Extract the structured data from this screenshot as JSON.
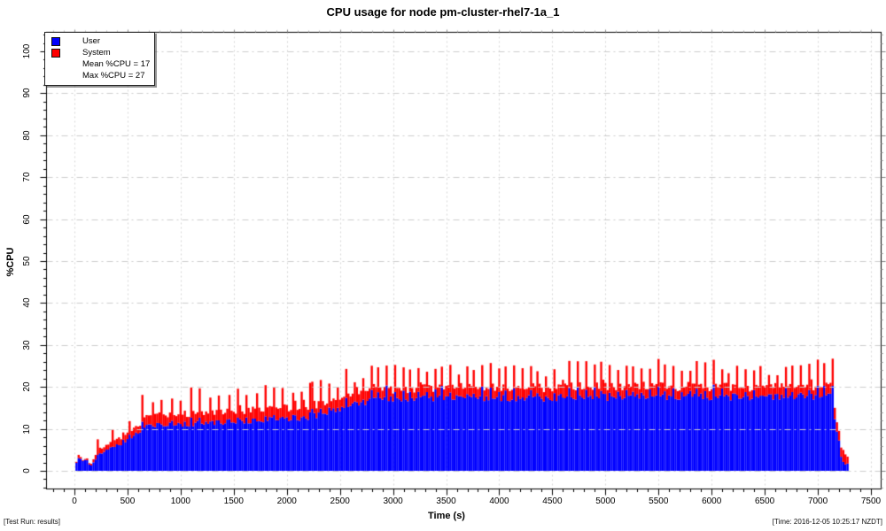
{
  "chart_data": {
    "type": "area",
    "stacked": true,
    "title": "CPU usage for node pm-cluster-rhel7-1a_1",
    "xlabel": "Time (s)",
    "ylabel": "%CPU",
    "xlim": [
      0,
      7500
    ],
    "ylim": [
      0,
      100
    ],
    "x_ticks": [
      0,
      500,
      1000,
      1500,
      2000,
      2500,
      3000,
      3500,
      4000,
      4500,
      5000,
      5500,
      6000,
      6500,
      7000,
      7500
    ],
    "y_ticks": [
      0,
      10,
      20,
      30,
      40,
      50,
      60,
      70,
      80,
      90,
      100
    ],
    "x_minor_step": 100,
    "y_minor_step": 2,
    "grid": "on",
    "legend_position": "top-left",
    "series": [
      {
        "name": "User",
        "color": "#0000ff"
      },
      {
        "name": "System",
        "color": "#ff0000"
      }
    ],
    "stats": {
      "mean_cpu": 17,
      "max_cpu": 27
    },
    "sample_interval_s": 20,
    "t_start": 20,
    "t_end": 7285,
    "profile_segments": [
      {
        "t0": 20,
        "t1": 130,
        "u0": 2.4,
        "u1": 2.9,
        "s0": 0.4,
        "s1": 0.5,
        "j": 0.7,
        "P": 0,
        "su": 0,
        "ss": 0
      },
      {
        "t0": 130,
        "t1": 210,
        "u0": 1.1,
        "u1": 2.6,
        "s0": 0.4,
        "s1": 1.0,
        "j": 0.5,
        "P": 0,
        "su": 0,
        "ss": 0
      },
      {
        "t0": 210,
        "t1": 640,
        "u0": 3.0,
        "u1": 10.2,
        "s0": 1.3,
        "s1": 1.8,
        "j": 0.8,
        "P": 150,
        "su": 1.2,
        "ss": 2.6
      },
      {
        "t0": 640,
        "t1": 1620,
        "u0": 10.8,
        "u1": 11.7,
        "s0": 2.3,
        "s1": 2.4,
        "j": 0.7,
        "P": 90,
        "su": 1.0,
        "ss": 4.6
      },
      {
        "t0": 1620,
        "t1": 2240,
        "u0": 11.9,
        "u1": 12.8,
        "s0": 2.5,
        "s1": 2.6,
        "j": 0.7,
        "P": 85,
        "su": 1.0,
        "ss": 4.4
      },
      {
        "t0": 2240,
        "t1": 2860,
        "u0": 13.1,
        "u1": 17.2,
        "s0": 2.4,
        "s1": 2.5,
        "j": 0.8,
        "P": 80,
        "su": 2.2,
        "ss": 4.4
      },
      {
        "t0": 2860,
        "t1": 7150,
        "u0": 17.3,
        "u1": 17.7,
        "s0": 2.3,
        "s1": 2.4,
        "j": 0.9,
        "P": 75,
        "su": 2.4,
        "ss": 4.3
      },
      {
        "t0": 7150,
        "t1": 7230,
        "u0": 14.0,
        "u1": 2.5,
        "s0": 2.5,
        "s1": 2.0,
        "j": 0.6,
        "P": 0,
        "su": 0,
        "ss": 0
      },
      {
        "t0": 7230,
        "t1": 7285,
        "u0": 2.0,
        "u1": 1.0,
        "s0": 3.0,
        "s1": 1.5,
        "j": 0.8,
        "P": 0,
        "su": 0,
        "ss": 0
      }
    ]
  },
  "legend": {
    "items": [
      {
        "label": "User",
        "color": "#0000ff"
      },
      {
        "label": "System",
        "color": "#ff0000"
      },
      {
        "label": "Mean %CPU = 17"
      },
      {
        "label": "Max %CPU = 27"
      }
    ]
  },
  "footer": {
    "left": "[Test Run: results]",
    "right": "[Time: 2016-12-05 10:25:17 NZDT]"
  }
}
